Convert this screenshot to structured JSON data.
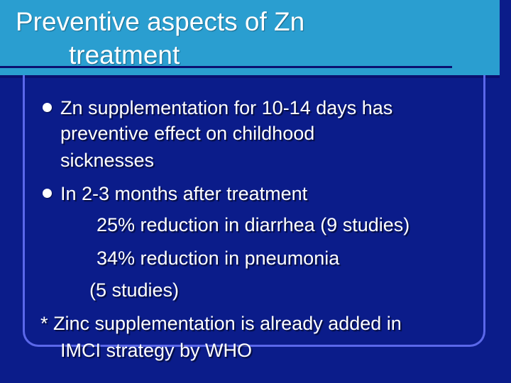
{
  "slide": {
    "title_line1": "Preventive aspects of Zn",
    "title_line2": "treatment",
    "lines": [
      "Zn supplementation for 10-14 days has",
      "preventive effect on childhood",
      "sicknesses",
      "In 2-3 months after treatment",
      "25% reduction in diarrhea (9 studies)",
      "34% reduction in pneumonia",
      "(5 studies)",
      "* Zinc supplementation is already added in",
      "IMCI strategy by WHO"
    ]
  },
  "colors": {
    "background": "#0b1c8a",
    "title_band": "#2a9ed0",
    "frame": "#5b68ea",
    "text": "#ffffff"
  }
}
